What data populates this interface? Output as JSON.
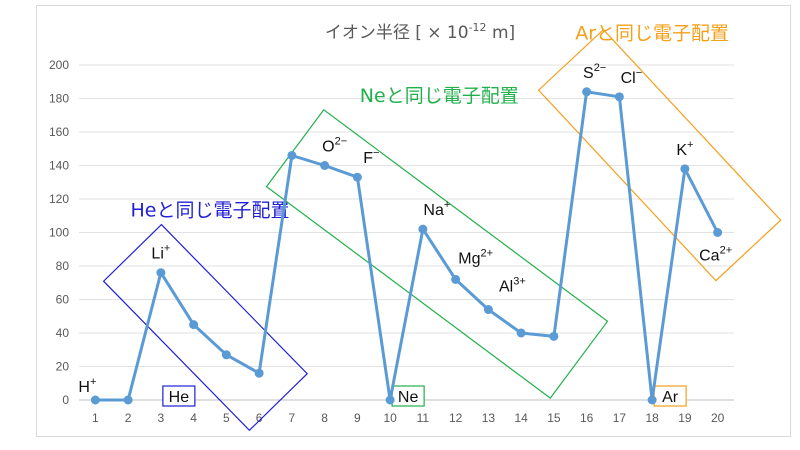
{
  "chart_data": {
    "type": "line",
    "title": {
      "main": "イオン半径 [ × 10",
      "exp": "-12",
      "unit": " m]"
    },
    "xlabel": "",
    "ylabel": "",
    "ylim": [
      0,
      200
    ],
    "yticks": [
      0,
      20,
      40,
      60,
      80,
      100,
      120,
      140,
      160,
      180,
      200
    ],
    "grid": true,
    "x": [
      1,
      2,
      3,
      4,
      5,
      6,
      7,
      8,
      9,
      10,
      11,
      12,
      13,
      14,
      15,
      16,
      17,
      18,
      19,
      20
    ],
    "series": [
      {
        "values": [
          0,
          0,
          76,
          45,
          27,
          16,
          146,
          140,
          133,
          0,
          102,
          72,
          54,
          40,
          38,
          184,
          181,
          0,
          138,
          100
        ]
      }
    ],
    "point_labels": [
      {
        "x": 1,
        "base": "H",
        "sup": "+"
      },
      {
        "x": 3,
        "base": "Li",
        "sup": "+"
      },
      {
        "x": 8,
        "base": "O",
        "sup": "2−"
      },
      {
        "x": 9,
        "base": "F",
        "sup": "−"
      },
      {
        "x": 11,
        "base": "Na",
        "sup": "+"
      },
      {
        "x": 12,
        "base": "Mg",
        "sup": "2+"
      },
      {
        "x": 13,
        "base": "Al",
        "sup": "3+"
      },
      {
        "x": 16,
        "base": "S",
        "sup": "2−"
      },
      {
        "x": 17,
        "base": "Cl",
        "sup": "−"
      },
      {
        "x": 19,
        "base": "K",
        "sup": "+"
      },
      {
        "x": 20,
        "base": "Ca",
        "sup": "2+"
      }
    ],
    "groups": [
      {
        "label": "Heと同じ電子配置",
        "color": "#1f1fd6",
        "gas": "He",
        "gas_x": 3,
        "members": [
          3,
          4,
          5,
          6
        ]
      },
      {
        "label": "Neと同じ電子配置",
        "color": "#21b04b",
        "gas": "Ne",
        "gas_x": 10,
        "members": [
          8,
          9,
          11,
          12,
          13,
          14,
          15
        ]
      },
      {
        "label": "Arと同じ電子配置",
        "color": "#f5a01a",
        "gas": "Ar",
        "gas_x": 18,
        "members": [
          16,
          17,
          19,
          20
        ]
      }
    ],
    "line_color": "#5b9bd5"
  }
}
